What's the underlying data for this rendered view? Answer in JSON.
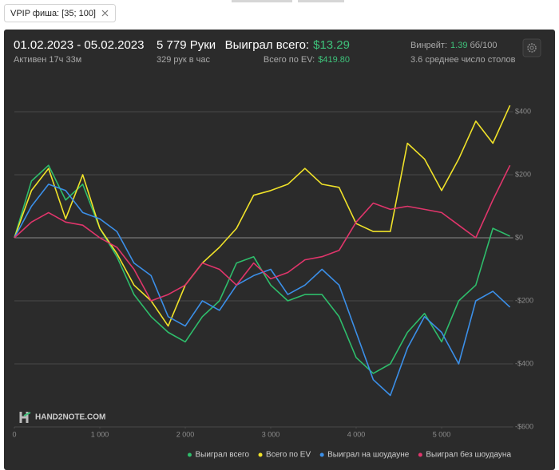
{
  "filter": {
    "label": "VPIP фиша: [35; 100]"
  },
  "header": {
    "period": "01.02.2023 - 05.02.2023",
    "active": "Активен 17ч 33м",
    "hands": "5 779 Руки",
    "hands_per_hour": "329 рук в час",
    "won_label": "Выиграл всего:",
    "won_value": "$13.29",
    "ev_label": "Всего по EV:",
    "ev_value": "$419.80",
    "winrate_label": "Винрейт:",
    "winrate_value": "1.39",
    "winrate_unit": "бб/100",
    "tables": "3.6 среднее число столов"
  },
  "chart_data": {
    "type": "line",
    "watermark": "HAND2NOTE.COM",
    "x": [
      0,
      200,
      400,
      600,
      800,
      1000,
      1200,
      1400,
      1600,
      1800,
      2000,
      2200,
      2400,
      2600,
      2800,
      3000,
      3200,
      3400,
      3600,
      3800,
      4000,
      4200,
      4400,
      4600,
      4800,
      5000,
      5200,
      5400,
      5600,
      5800
    ],
    "xlim": [
      0,
      5800
    ],
    "xticks": [
      0,
      {
        "value": 1000,
        "label": "1 000"
      },
      {
        "value": 2000,
        "label": "2 000"
      },
      {
        "value": 3000,
        "label": "3 000"
      },
      {
        "value": 4000,
        "label": "4 000"
      },
      {
        "value": 5000,
        "label": "5 000"
      }
    ],
    "ylim": [
      -600,
      500
    ],
    "yticks": [
      {
        "value": -600,
        "label": "-$600"
      },
      {
        "value": -400,
        "label": "-$400"
      },
      {
        "value": -200,
        "label": "-$200"
      },
      {
        "value": 0,
        "label": "$0"
      },
      {
        "value": 200,
        "label": "$200"
      },
      {
        "value": 400,
        "label": "$400"
      }
    ],
    "grid": true,
    "series": [
      {
        "name": "Выиграл всего",
        "color": "#2ebd6b",
        "values": [
          0,
          180,
          230,
          120,
          170,
          30,
          -60,
          -180,
          -250,
          -300,
          -330,
          -250,
          -200,
          -80,
          -60,
          -150,
          -200,
          -180,
          -180,
          -250,
          -380,
          -430,
          -400,
          -300,
          -240,
          -330,
          -200,
          -150,
          30,
          5
        ]
      },
      {
        "name": "Всего по EV",
        "color": "#f0e229",
        "values": [
          0,
          150,
          220,
          60,
          200,
          30,
          -50,
          -150,
          -200,
          -280,
          -150,
          -80,
          -30,
          30,
          135,
          150,
          170,
          220,
          170,
          160,
          45,
          20,
          20,
          300,
          250,
          150,
          250,
          370,
          300,
          420
        ]
      },
      {
        "name": "Выиграл на шоудауне",
        "color": "#3b8fe8",
        "values": [
          0,
          100,
          170,
          150,
          80,
          60,
          20,
          -80,
          -120,
          -250,
          -280,
          -200,
          -230,
          -150,
          -120,
          -100,
          -180,
          -150,
          -100,
          -150,
          -300,
          -450,
          -500,
          -350,
          -250,
          -300,
          -400,
          -200,
          -170,
          -220
        ]
      },
      {
        "name": "Выиграл без шоудауна",
        "color": "#e0356b",
        "values": [
          0,
          50,
          80,
          50,
          40,
          0,
          -30,
          -100,
          -200,
          -180,
          -150,
          -80,
          -100,
          -150,
          -80,
          -130,
          -110,
          -70,
          -60,
          -40,
          50,
          110,
          90,
          100,
          90,
          80,
          40,
          0,
          120,
          230
        ]
      }
    ]
  }
}
